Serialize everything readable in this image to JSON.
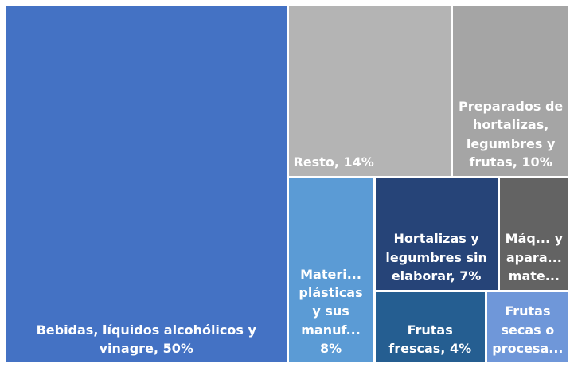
{
  "chart_data": {
    "type": "treemap",
    "categories": [
      "Bebidas, líquidos alcohólicos y vinagre,",
      "Resto,",
      "Preparados de hortalizas, legumbres y frutas,",
      "Materi... plásticas y sus manuf...",
      "Hortalizas y legumbres sin elaborar,",
      "Máq... y apara... mate...",
      "Frutas frescas,",
      "Frutas secas o procesa..."
    ],
    "values": [
      50,
      14,
      10,
      8,
      7,
      4,
      4,
      3
    ],
    "value_labels": [
      "50%",
      "14%",
      "10%",
      "8%",
      "7%",
      null,
      "4%",
      null
    ],
    "colors": [
      "#4472c4",
      "#b4b4b4",
      "#a5a5a5",
      "#5b9bd5",
      "#264478",
      "#636363",
      "#255e91",
      "#6f97d9"
    ]
  }
}
